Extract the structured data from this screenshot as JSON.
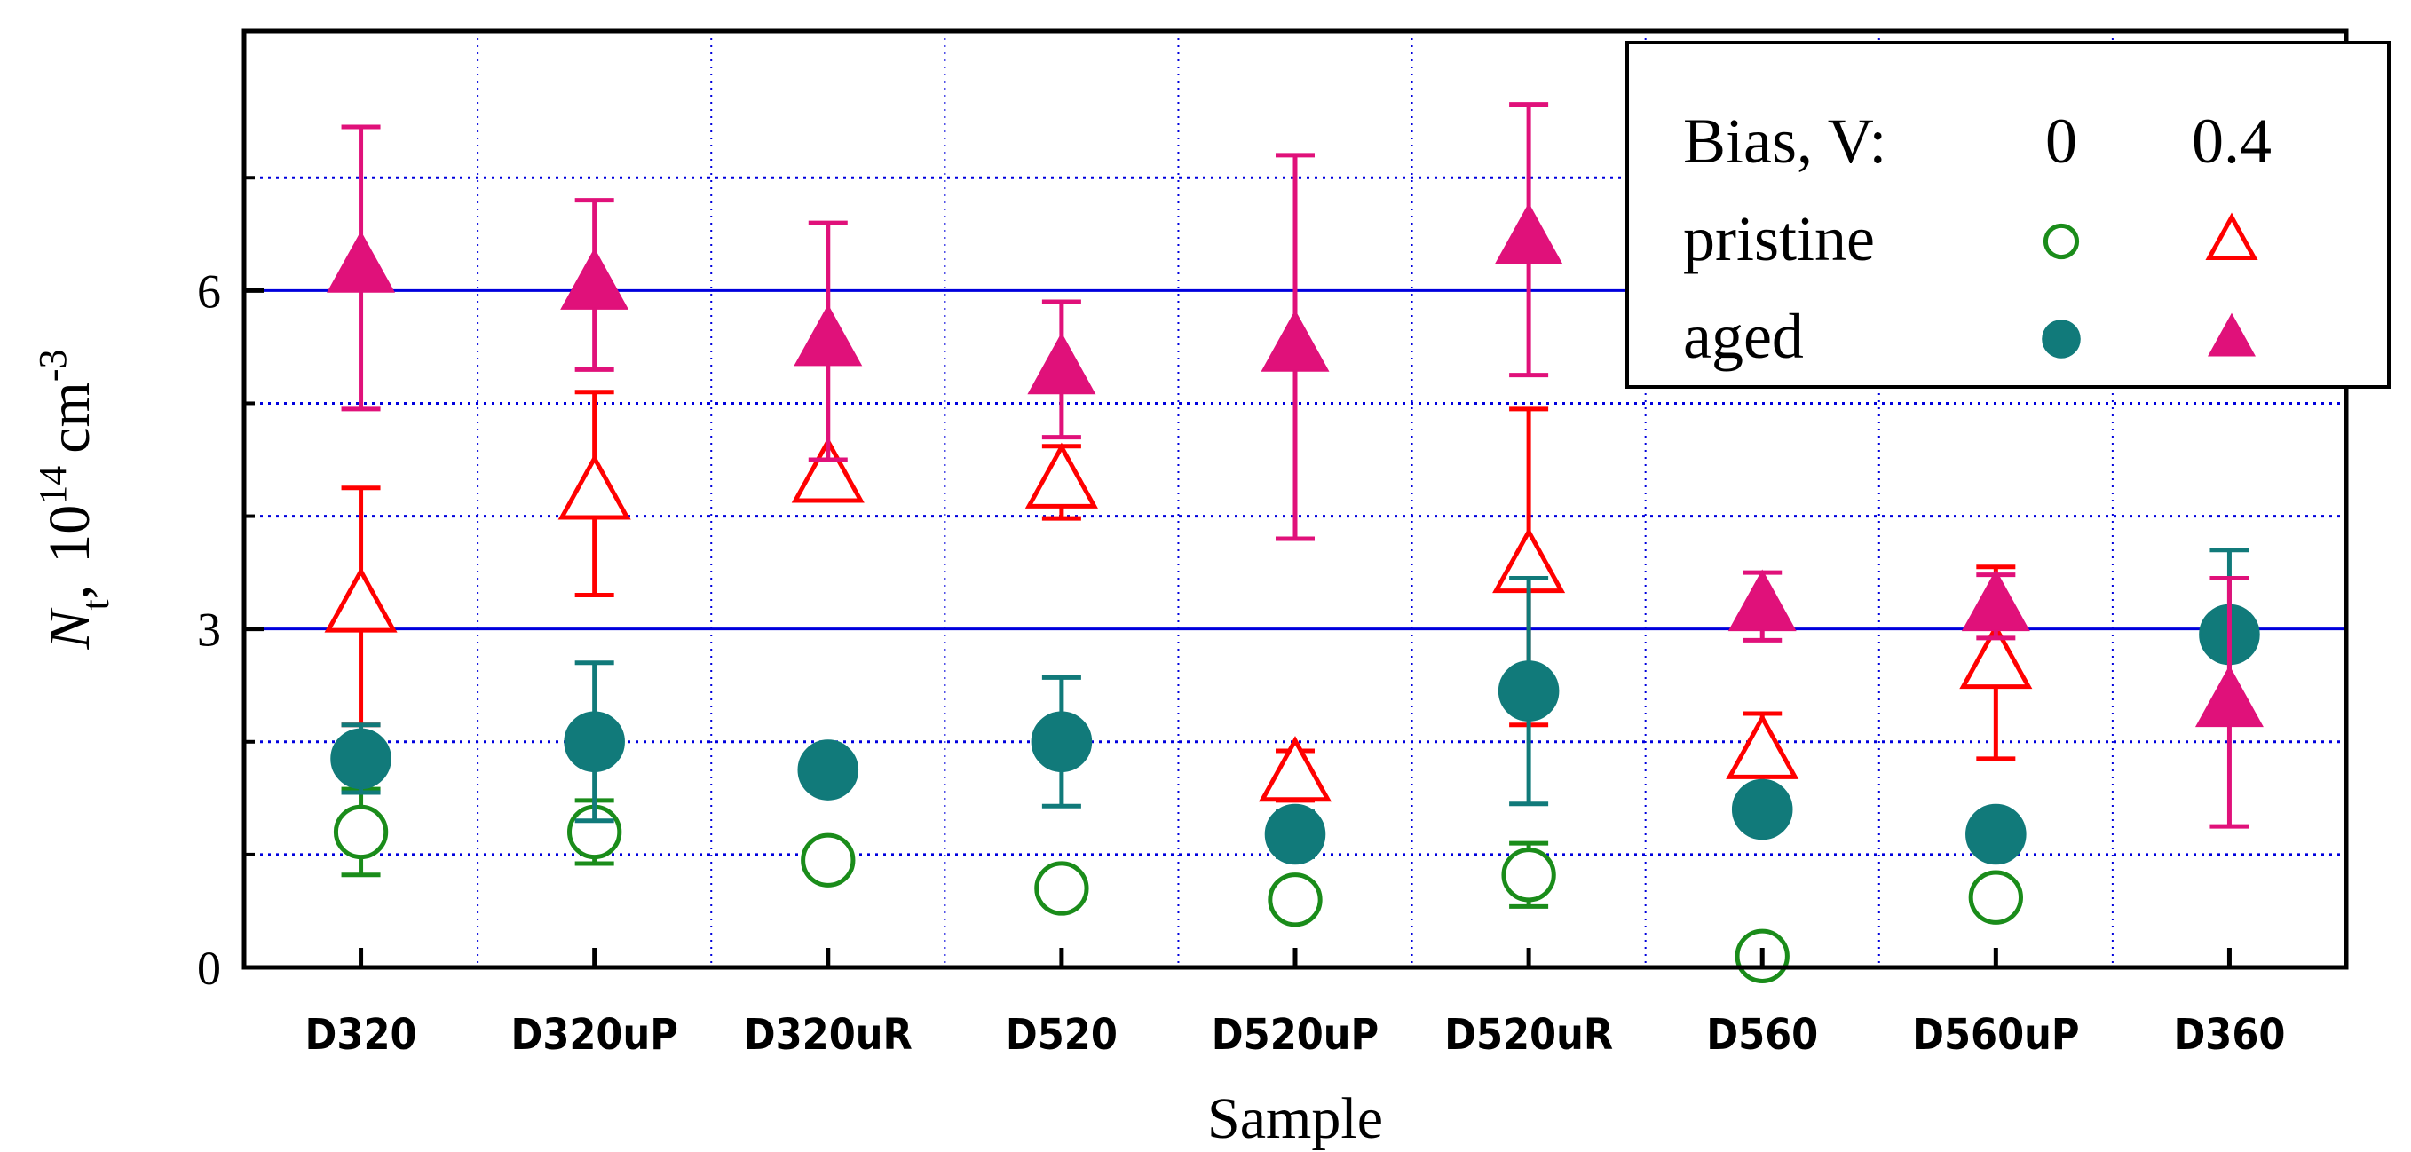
{
  "chart_data": {
    "type": "scatter",
    "categories": [
      "D320",
      "D320uP",
      "D320uR",
      "D520",
      "D520uP",
      "D520uR",
      "D560",
      "D560uP",
      "D360"
    ],
    "xlabel": "Sample",
    "ylabel": {
      "symbol": "N",
      "subscript": "t",
      "comma": ",",
      "prefix": "10",
      "exponent": "14",
      "unit": "cm",
      "unit_exponent": "-3"
    },
    "ylim": [
      0,
      8.3
    ],
    "yticks": [
      0,
      3,
      6
    ],
    "yminor_gridlines": [
      1,
      2,
      4,
      5,
      7
    ],
    "grid": {
      "major_horizontal": true,
      "minor_horizontal_dotted": true,
      "vertical_dotted": true
    },
    "legend": {
      "placement": "top-right",
      "header_label": "Bias,  V:",
      "bias_values": [
        "0",
        "0.4"
      ],
      "rows": [
        "pristine",
        "aged"
      ]
    },
    "colors": {
      "pristine_0": "#1a8c1a",
      "pristine_04": "#ff0000",
      "aged_0": "#117a7a",
      "aged_04": "#e0117a",
      "major_grid": "#0000dd",
      "minor_grid": "#0000dd"
    },
    "series": [
      {
        "name": "pristine, 0 V",
        "marker": "circle-open",
        "color": "#1a8c1a",
        "values": [
          1.2,
          1.2,
          0.95,
          0.7,
          0.6,
          0.82,
          0.1,
          0.62,
          null
        ],
        "errors": [
          0.38,
          0.28,
          null,
          null,
          0.1,
          0.28,
          null,
          0.08,
          null
        ]
      },
      {
        "name": "pristine, 0.4 V",
        "marker": "triangle-open",
        "color": "#ff0000",
        "values": [
          3.2,
          4.2,
          4.35,
          4.3,
          1.7,
          3.55,
          1.9,
          2.7,
          null
        ],
        "errors": [
          1.05,
          0.9,
          null,
          0.32,
          0.22,
          1.4,
          0.35,
          0.85,
          null
        ]
      },
      {
        "name": "aged, 0 V",
        "marker": "circle-filled",
        "color": "#117a7a",
        "values": [
          1.85,
          2.0,
          1.75,
          2.0,
          1.18,
          2.45,
          1.4,
          1.18,
          2.95
        ],
        "errors": [
          0.3,
          0.7,
          null,
          0.57,
          0.2,
          1.0,
          null,
          0.12,
          0.75
        ]
      },
      {
        "name": "aged, 0.4 V",
        "marker": "triangle-filled",
        "color": "#e0117a",
        "values": [
          6.2,
          6.05,
          5.55,
          5.3,
          5.5,
          6.45,
          3.2,
          3.2,
          2.35
        ],
        "errors": [
          1.25,
          0.75,
          1.05,
          0.6,
          1.7,
          1.2,
          0.3,
          0.28,
          1.1
        ]
      }
    ]
  }
}
